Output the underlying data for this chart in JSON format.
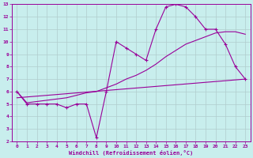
{
  "xlabel": "Windchill (Refroidissement éolien,°C)",
  "bg_color": "#c8eeed",
  "line_color": "#990099",
  "grid_color": "#b0cccc",
  "xlim": [
    -0.5,
    23.5
  ],
  "ylim": [
    2,
    13
  ],
  "xticks": [
    0,
    1,
    2,
    3,
    4,
    5,
    6,
    7,
    8,
    9,
    10,
    11,
    12,
    13,
    14,
    15,
    16,
    17,
    18,
    19,
    20,
    21,
    22,
    23
  ],
  "yticks": [
    2,
    3,
    4,
    5,
    6,
    7,
    8,
    9,
    10,
    11,
    12,
    13
  ],
  "main_x": [
    0,
    1,
    2,
    3,
    4,
    5,
    6,
    7,
    8,
    9,
    10,
    11,
    12,
    13,
    14,
    15,
    16,
    17,
    18,
    19,
    20,
    21,
    22,
    23
  ],
  "main_y": [
    6.0,
    5.0,
    5.0,
    5.0,
    5.0,
    4.7,
    5.0,
    5.0,
    2.3,
    6.0,
    10.0,
    9.5,
    9.0,
    8.5,
    11.0,
    12.8,
    13.0,
    12.8,
    12.0,
    11.0,
    11.0,
    9.8,
    8.0,
    7.0
  ],
  "line2_x": [
    0,
    1,
    2,
    3,
    4,
    5,
    6,
    7,
    8,
    9,
    10,
    11,
    12,
    13,
    14,
    15,
    16,
    17,
    18,
    19,
    20,
    21,
    22,
    23
  ],
  "line2_y": [
    6.0,
    5.1,
    5.2,
    5.3,
    5.4,
    5.5,
    5.7,
    5.9,
    6.0,
    6.3,
    6.6,
    7.0,
    7.3,
    7.7,
    8.2,
    8.8,
    9.3,
    9.8,
    10.1,
    10.4,
    10.7,
    10.8,
    10.8,
    10.6
  ],
  "line3_x": [
    0,
    23
  ],
  "line3_y": [
    5.5,
    7.0
  ]
}
